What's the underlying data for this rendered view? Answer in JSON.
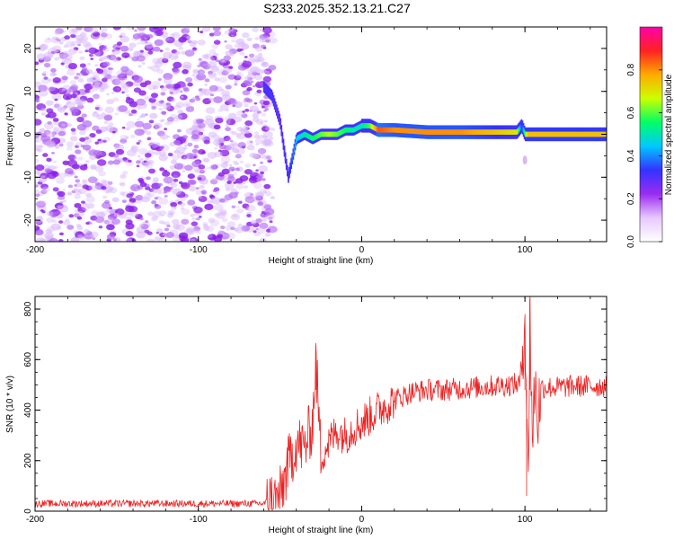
{
  "title": "S233.2025.352.13.21.C27",
  "chart_data": [
    {
      "type": "heatmap",
      "xlabel": "Height of straight line (km)",
      "ylabel": "Frequency (Hz)",
      "xlim": [
        -200,
        150
      ],
      "ylim": [
        -25,
        25
      ],
      "x_ticks": [
        -200,
        -100,
        0,
        100
      ],
      "x_tick_labels": [
        "-200",
        "-100",
        "0",
        "100"
      ],
      "y_ticks": [
        -20,
        -10,
        0,
        10,
        20
      ],
      "y_tick_labels": [
        "-20",
        "-10",
        "0",
        "10",
        "20"
      ],
      "colorbar": {
        "label": "Normalized spectral amplitude",
        "range": [
          0,
          1
        ],
        "ticks": [
          0.0,
          0.2,
          0.4,
          0.6,
          0.8
        ],
        "tick_labels": [
          "0.0",
          "0.2",
          "0.4",
          "0.6",
          "0.8"
        ],
        "colormap": [
          "#ffffff",
          "#e8c8ff",
          "#9a2cf0",
          "#3333ff",
          "#00c8ff",
          "#00ff66",
          "#ccff00",
          "#ffaa00",
          "#ff2222",
          "#ff00aa"
        ]
      },
      "noise_region": {
        "x_range": [
          -200,
          -60
        ],
        "f_range": [
          -25,
          25
        ],
        "amplitude": 0.1
      },
      "signal_trace": {
        "x": [
          -60,
          -55,
          -50,
          -47,
          -45,
          -40,
          -35,
          -30,
          -25,
          -20,
          -15,
          -10,
          -5,
          0,
          5,
          10,
          20,
          40,
          60,
          80,
          95,
          98,
          100,
          102,
          110,
          130,
          150
        ],
        "frequency": [
          11,
          9,
          3,
          -5,
          -10,
          -1,
          0,
          -1,
          0,
          0,
          0,
          1,
          1,
          2,
          2,
          1,
          1,
          0.5,
          0.5,
          0.5,
          0.5,
          2,
          0,
          0,
          0,
          0,
          0
        ],
        "amplitude": [
          0.3,
          0.3,
          0.25,
          0.3,
          0.3,
          0.45,
          0.5,
          0.55,
          0.6,
          0.65,
          0.6,
          0.55,
          0.5,
          0.5,
          0.6,
          0.85,
          0.8,
          0.8,
          0.8,
          0.75,
          0.7,
          0.3,
          0.6,
          0.75,
          0.75,
          0.75,
          0.75
        ]
      }
    },
    {
      "type": "line",
      "xlabel": "Height of straight line (km)",
      "ylabel": "SNR (10 * v/v)",
      "xlim": [
        -200,
        150
      ],
      "ylim": [
        0,
        850
      ],
      "x_ticks": [
        -200,
        -100,
        0,
        100
      ],
      "x_tick_labels": [
        "-200",
        "-100",
        "0",
        "100"
      ],
      "y_ticks": [
        0,
        200,
        400,
        600,
        800
      ],
      "y_tick_labels": [
        "0",
        "200",
        "400",
        "600",
        "800"
      ],
      "series": [
        {
          "name": "SNR",
          "color": "#ee2222",
          "x": [
            -200,
            -150,
            -100,
            -60,
            -50,
            -45,
            -40,
            -35,
            -30,
            -28,
            -25,
            -20,
            -15,
            -10,
            -5,
            0,
            10,
            20,
            30,
            40,
            50,
            60,
            70,
            80,
            90,
            97,
            100,
            102,
            103,
            104,
            105,
            106,
            108,
            110,
            120,
            130,
            150
          ],
          "y": [
            30,
            30,
            30,
            30,
            60,
            180,
            270,
            250,
            350,
            600,
            220,
            270,
            320,
            300,
            330,
            350,
            400,
            440,
            470,
            480,
            480,
            485,
            490,
            495,
            500,
            505,
            780,
            60,
            840,
            430,
            300,
            520,
            380,
            490,
            490,
            495,
            495
          ]
        }
      ]
    }
  ]
}
